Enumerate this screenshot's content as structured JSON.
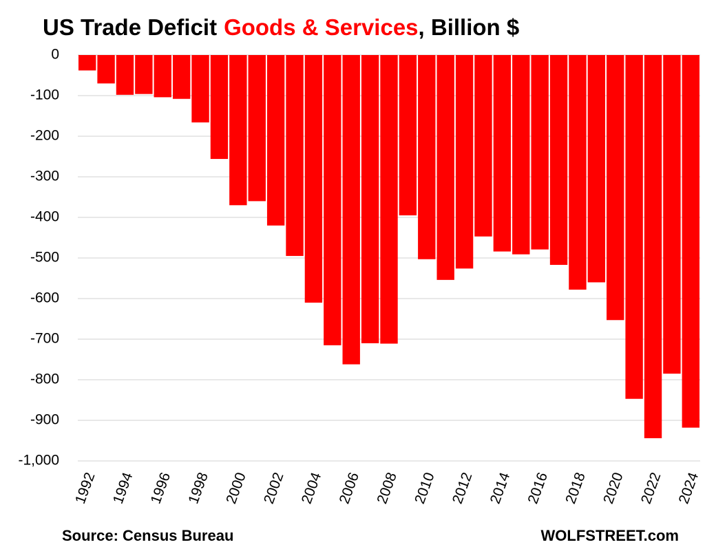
{
  "chart_data": {
    "type": "bar",
    "title": [
      "US Trade Deficit",
      "Goods & Services",
      ", Billion $"
    ],
    "title_colors": [
      "#000000",
      "#ff0000",
      "#000000"
    ],
    "categories": [
      "1992",
      null,
      "1994",
      null,
      "1996",
      null,
      "1998",
      null,
      "2000",
      null,
      "2002",
      null,
      "2004",
      null,
      "2006",
      null,
      "2008",
      null,
      "2010",
      null,
      "2012",
      null,
      "2014",
      null,
      "2016",
      null,
      "2018",
      null,
      "2020",
      null,
      "2022",
      null,
      "2024"
    ],
    "values": [
      -38,
      -70,
      -98,
      -96,
      -104,
      -108,
      -166,
      -256,
      -370,
      -360,
      -420,
      -495,
      -610,
      -715,
      -762,
      -710,
      -711,
      -395,
      -503,
      -554,
      -526,
      -447,
      -484,
      -491,
      -479,
      -517,
      -578,
      -560,
      -653,
      -847,
      -944,
      -785,
      -918
    ],
    "color": "#ff0000",
    "ylim": [
      -1000,
      0
    ],
    "yticks": [
      0,
      -100,
      -200,
      -300,
      -400,
      -500,
      -600,
      -700,
      -800,
      -900,
      {
        "value": -1000,
        "label": "-1,000"
      }
    ],
    "grid": true,
    "source": "Source: Census Bureau",
    "brand": "WOLFSTREET.com"
  }
}
